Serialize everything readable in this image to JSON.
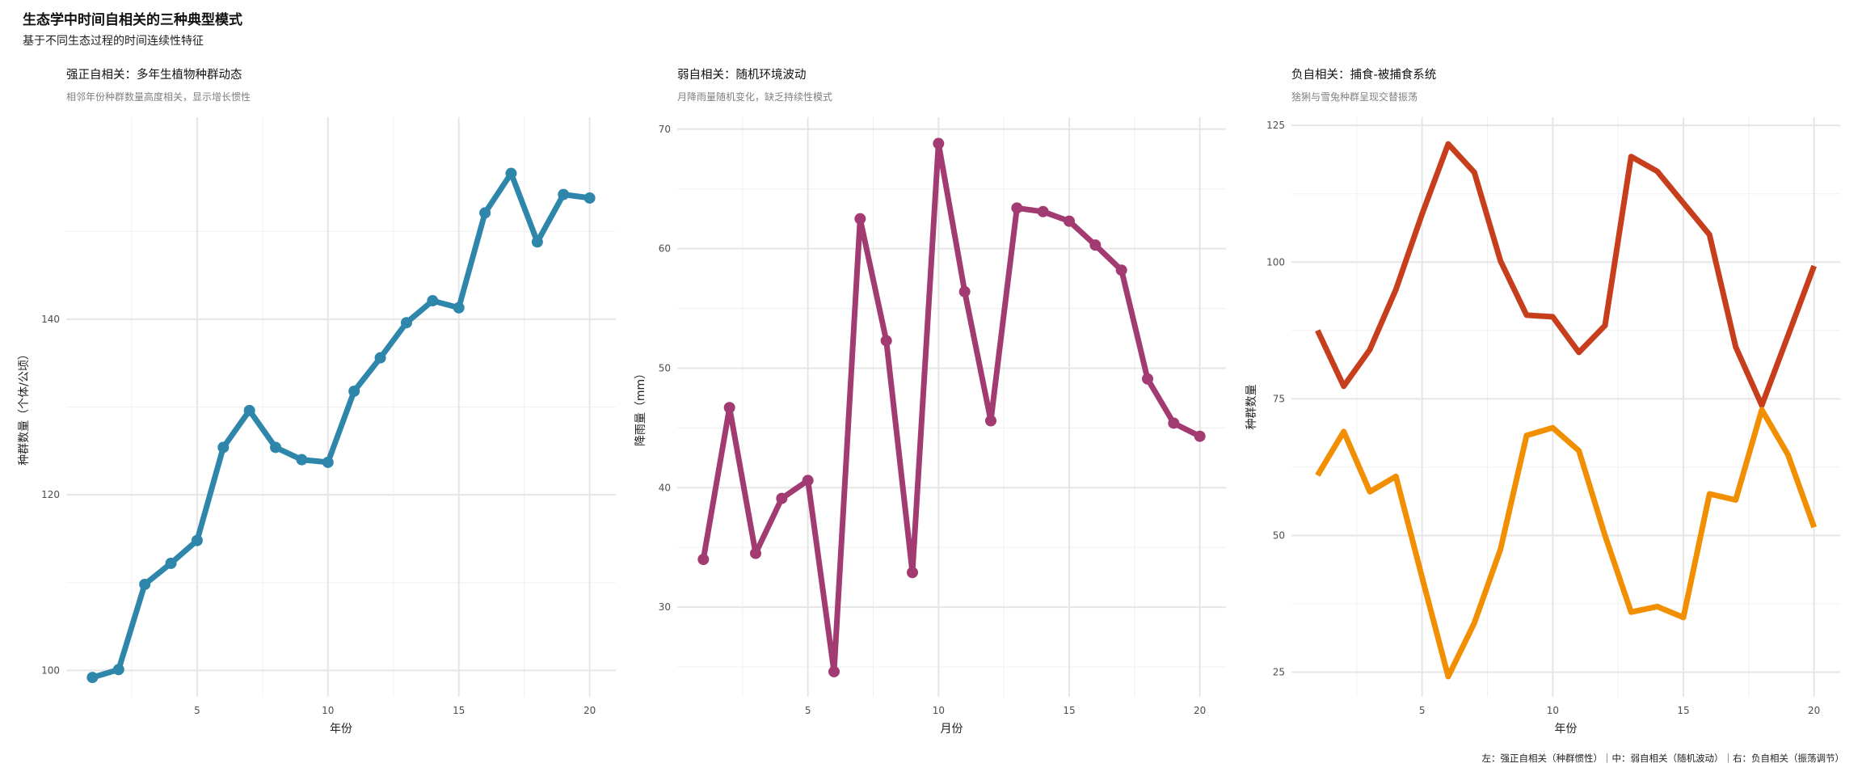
{
  "title": "生态学中时间自相关的三种典型模式",
  "subtitle": "基于不同生态过程的时间连续性特征",
  "caption": "左：强正自相关（种群惯性）｜中：弱自相关（随机波动）｜右：负自相关（振荡调节）",
  "chart_data": [
    {
      "type": "line",
      "title": "强正自相关：多年生植物种群动态",
      "subtitle": "相邻年份种群数量高度相关，显示增长惯性",
      "xlabel": "年份",
      "ylabel": "种群数量（个体/公顷）",
      "xlim": [
        0,
        21
      ],
      "ylim": [
        97,
        163
      ],
      "xticks": [
        5,
        10,
        15,
        20
      ],
      "yticks": [
        100,
        120,
        140
      ],
      "grid": true,
      "series": [
        {
          "color": "#2e86ab",
          "points": true,
          "x": [
            1,
            2,
            3,
            4,
            5,
            6,
            7,
            8,
            9,
            10,
            11,
            12,
            13,
            14,
            15,
            16,
            17,
            18,
            19,
            20
          ],
          "values": [
            99.2,
            100.1,
            109.8,
            112.2,
            114.8,
            125.4,
            129.6,
            125.4,
            124.0,
            123.7,
            131.8,
            135.6,
            139.6,
            142.1,
            141.3,
            152.1,
            156.6,
            148.8,
            154.2,
            153.8
          ]
        }
      ]
    },
    {
      "type": "line",
      "title": "弱自相关：随机环境波动",
      "subtitle": "月降雨量随机变化，缺乏持续性模式",
      "xlabel": "月份",
      "ylabel": "降雨量（mm）",
      "xlim": [
        0,
        21
      ],
      "ylim": [
        22.5,
        71
      ],
      "xticks": [
        5,
        10,
        15,
        20
      ],
      "yticks": [
        30,
        40,
        50,
        60,
        70
      ],
      "grid": true,
      "series": [
        {
          "color": "#a23b72",
          "points": true,
          "x": [
            1,
            2,
            3,
            4,
            5,
            6,
            7,
            8,
            9,
            10,
            11,
            12,
            13,
            14,
            15,
            16,
            17,
            18,
            19,
            20
          ],
          "values": [
            34.0,
            46.7,
            34.5,
            39.1,
            40.6,
            24.6,
            62.5,
            52.3,
            32.9,
            68.8,
            56.4,
            45.6,
            63.4,
            63.1,
            62.3,
            60.3,
            58.2,
            49.1,
            45.4,
            44.3
          ]
        }
      ]
    },
    {
      "type": "line",
      "title": "负自相关：捕食-被捕食系统",
      "subtitle": "猞猁与雪兔种群呈现交替振荡",
      "xlabel": "年份",
      "ylabel": "种群数量",
      "xlim": [
        0,
        21
      ],
      "ylim": [
        20.5,
        126.5
      ],
      "xticks": [
        5,
        10,
        15,
        20
      ],
      "yticks": [
        25,
        50,
        75,
        100,
        125
      ],
      "grid": true,
      "series": [
        {
          "color": "#c73e1d",
          "points": false,
          "x": [
            1,
            2,
            3,
            4,
            5,
            6,
            7,
            8,
            9,
            10,
            11,
            12,
            13,
            14,
            15,
            16,
            17,
            18,
            19,
            20
          ],
          "values": [
            87.5,
            77.3,
            84.0,
            95.0,
            108.8,
            121.6,
            116.4,
            100.2,
            90.3,
            90.0,
            83.5,
            88.4,
            119.3,
            116.6,
            110.8,
            105.0,
            84.5,
            73.8,
            86.5,
            99.3
          ]
        },
        {
          "color": "#f18f01",
          "points": false,
          "x": [
            1,
            2,
            3,
            4,
            5,
            6,
            7,
            8,
            9,
            10,
            11,
            12,
            13,
            14,
            15,
            16,
            17,
            18,
            19,
            20
          ],
          "values": [
            61.0,
            69.0,
            58.0,
            60.8,
            42.3,
            24.2,
            34.0,
            47.5,
            68.3,
            69.7,
            65.5,
            50.0,
            36.0,
            37.0,
            35.0,
            57.6,
            56.5,
            73.0,
            64.8,
            51.5
          ]
        }
      ]
    }
  ]
}
